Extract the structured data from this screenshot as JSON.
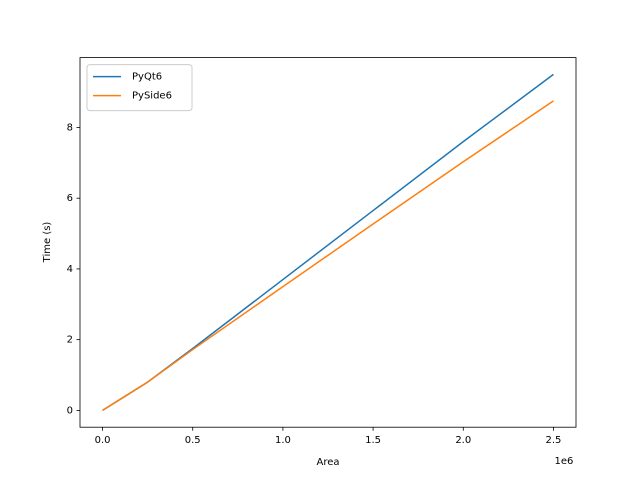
{
  "chart_data": {
    "type": "line",
    "xlabel": "Area",
    "ylabel": "Time (s)",
    "x_offset_label": "1e6",
    "x": [
      0,
      250000,
      500000,
      1000000,
      1500000,
      2000000,
      2500000
    ],
    "series": [
      {
        "name": "PyQt6",
        "color": "#1f77b4",
        "values": [
          0,
          0.8,
          1.75,
          3.7,
          5.65,
          7.6,
          9.5
        ]
      },
      {
        "name": "PySide6",
        "color": "#ff7f0e",
        "values": [
          0,
          0.8,
          1.72,
          3.5,
          5.27,
          7.03,
          8.75
        ]
      }
    ],
    "xlim": [
      -125000,
      2625000
    ],
    "xticks": [
      {
        "value": 0,
        "label": "0.0"
      },
      {
        "value": 500000,
        "label": "0.5"
      },
      {
        "value": 1000000,
        "label": "1.0"
      },
      {
        "value": 1500000,
        "label": "1.5"
      },
      {
        "value": 2000000,
        "label": "2.0"
      },
      {
        "value": 2500000,
        "label": "2.5"
      }
    ],
    "ylim": [
      -0.475,
      9.975
    ],
    "yticks": [
      0,
      2,
      4,
      6,
      8
    ],
    "legend": "upper left"
  }
}
